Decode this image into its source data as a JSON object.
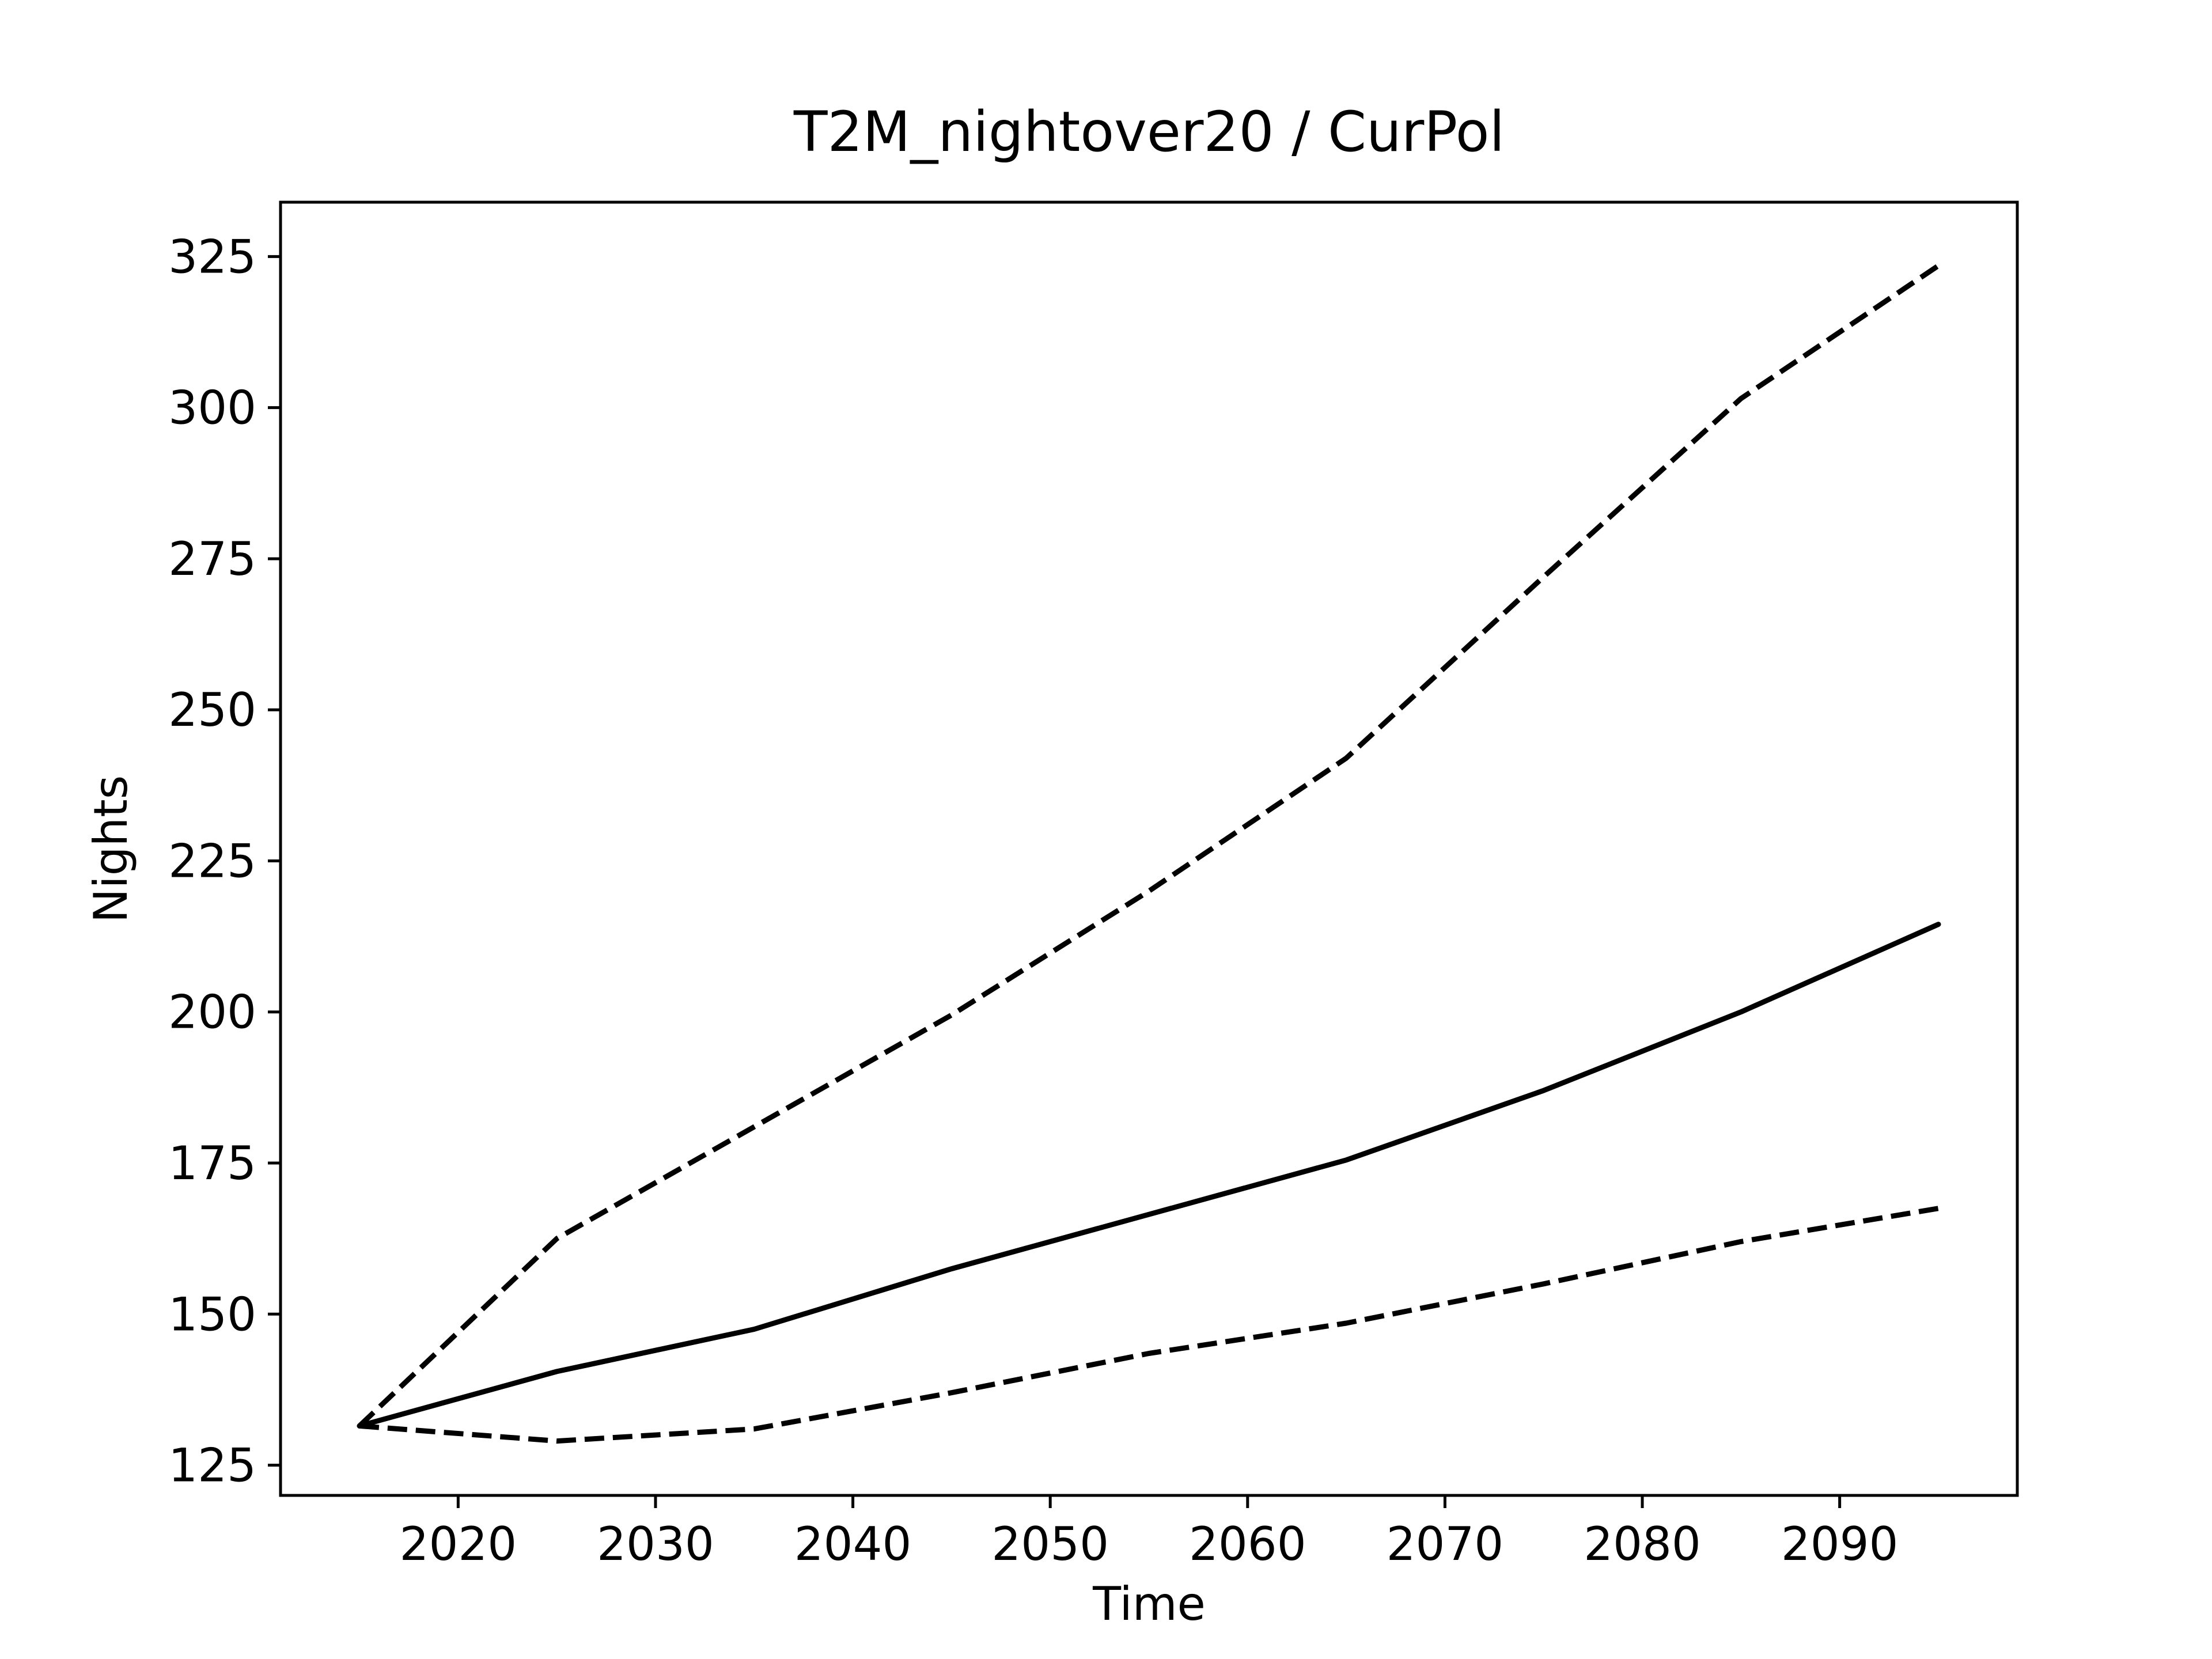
{
  "chart_data": {
    "type": "line",
    "title": "T2M_nightover20 / CurPol",
    "xlabel": "Time",
    "ylabel": "Nights",
    "xlim": [
      2011,
      2099
    ],
    "ylim": [
      120,
      334
    ],
    "xticks": [
      2020,
      2030,
      2040,
      2050,
      2060,
      2070,
      2080,
      2090
    ],
    "yticks": [
      125,
      150,
      175,
      200,
      225,
      250,
      275,
      300,
      325
    ],
    "grid": false,
    "legend": "none",
    "x": [
      2015,
      2025,
      2035,
      2045,
      2055,
      2065,
      2075,
      2085,
      2095
    ],
    "series": [
      {
        "style": "solid",
        "color": "#000000",
        "values": [
          131.5,
          140.5,
          147.5,
          157.5,
          166.5,
          175.5,
          187,
          200,
          214.5
        ]
      },
      {
        "style": "dashed",
        "color": "#000000",
        "values": [
          131.5,
          162.5,
          181,
          199.5,
          220,
          242,
          272,
          301.5,
          323.5
        ]
      },
      {
        "style": "dashed",
        "color": "#000000",
        "values": [
          131.5,
          129,
          131,
          137,
          143.5,
          148.5,
          155,
          162,
          167.5
        ]
      }
    ]
  }
}
